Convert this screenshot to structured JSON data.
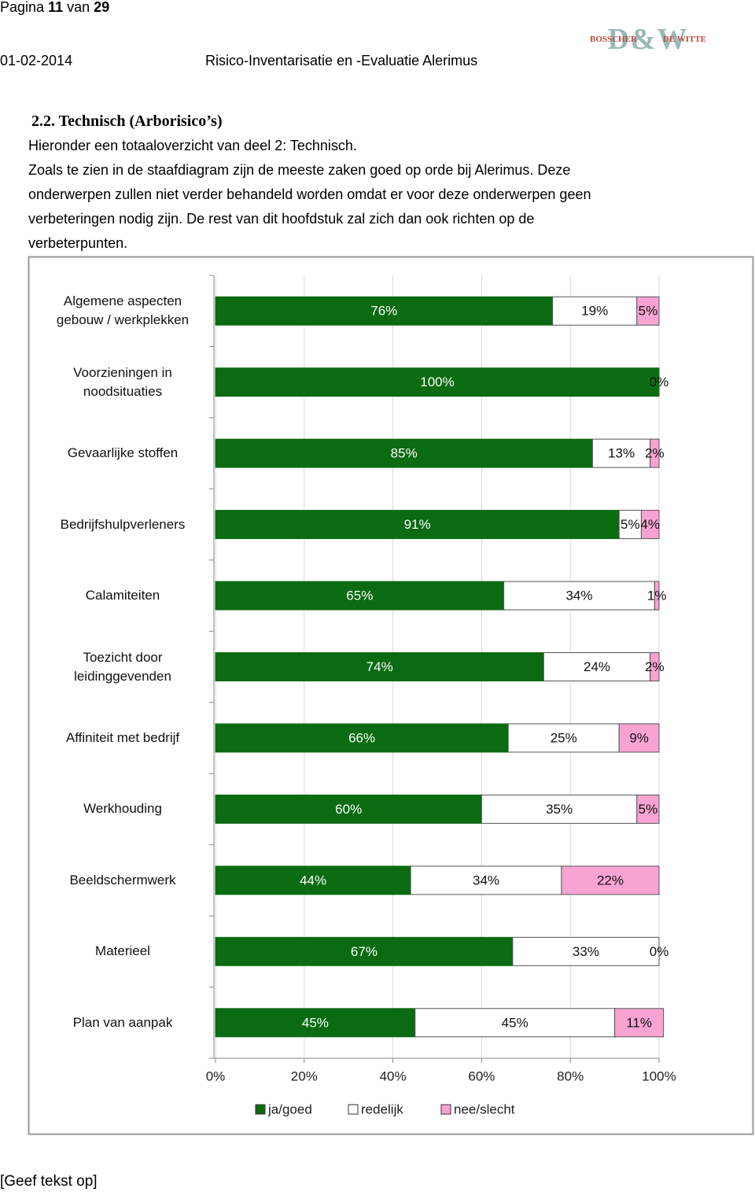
{
  "header": {
    "page_label": "Pagina",
    "page_number": "11",
    "page_of": "van",
    "page_total": "29",
    "date": "01-02-2014",
    "doc_title": "Risico-Inventarisatie en -Evaluatie Alerimus",
    "logo": {
      "left": "BOSSCHER",
      "mark": "D&W",
      "right": "DE WITTE"
    }
  },
  "section": {
    "heading": "2.2. Technisch (Arborisico’s)",
    "lines": [
      "Hieronder een totaaloverzicht van deel 2: Technisch.",
      "Zoals te zien in de staafdiagram zijn de meeste zaken goed op orde bij Alerimus. Deze",
      "onderwerpen zullen niet verder behandeld worden omdat er voor deze onderwerpen geen",
      "verbeteringen nodig zijn. De rest van dit hoofdstuk zal zich dan ook richten op de",
      "verbeterpunten."
    ]
  },
  "chart_data": {
    "type": "stacked-bar-horizontal",
    "categories": [
      "Algemene aspecten gebouw / werkplekken",
      "Voorzieningen in noodsituaties",
      "Gevaarlijke stoffen",
      "Bedrijfshulpverleners",
      "Calamiteiten",
      "Toezicht door leidinggevenden",
      "Affiniteit met bedrijf",
      "Werkhouding",
      "Beeldschermwerk",
      "Materieel",
      "Plan van aanpak"
    ],
    "series": [
      {
        "name": "ja/goed",
        "color": "#0b6b12",
        "values": [
          76,
          100,
          85,
          91,
          65,
          74,
          66,
          60,
          44,
          67,
          45
        ],
        "value_labels": [
          "76%",
          "100%",
          "85%",
          "91%",
          "65%",
          "74%",
          "66%",
          "60%",
          "44%",
          "67%",
          "45%"
        ]
      },
      {
        "name": "redelijk",
        "color": "#ffffff",
        "values": [
          19,
          0,
          13,
          5,
          34,
          24,
          25,
          35,
          34,
          33,
          45
        ],
        "value_labels": [
          "19%",
          null,
          "13%",
          "5%",
          "34%",
          "24%",
          "25%",
          "35%",
          "34%",
          "33%",
          "45%"
        ]
      },
      {
        "name": "nee/slecht",
        "color": "#f9a3d2",
        "values": [
          5,
          0,
          2,
          4,
          1,
          2,
          9,
          5,
          22,
          0,
          11
        ],
        "value_labels": [
          "5%",
          "0%",
          "2%",
          "4%",
          "1%",
          "2%",
          "9%",
          "5%",
          "22%",
          "0%",
          "11%"
        ]
      }
    ],
    "xlim": [
      0,
      100
    ],
    "xticks": [
      {
        "value": 0,
        "label": "0%"
      },
      {
        "value": 20,
        "label": "20%"
      },
      {
        "value": 40,
        "label": "40%"
      },
      {
        "value": 60,
        "label": "60%"
      },
      {
        "value": 80,
        "label": "80%"
      },
      {
        "value": 100,
        "label": "100%"
      }
    ],
    "grid": true,
    "legend": "bottom"
  },
  "footer": {
    "text": "[Geef tekst op]"
  }
}
